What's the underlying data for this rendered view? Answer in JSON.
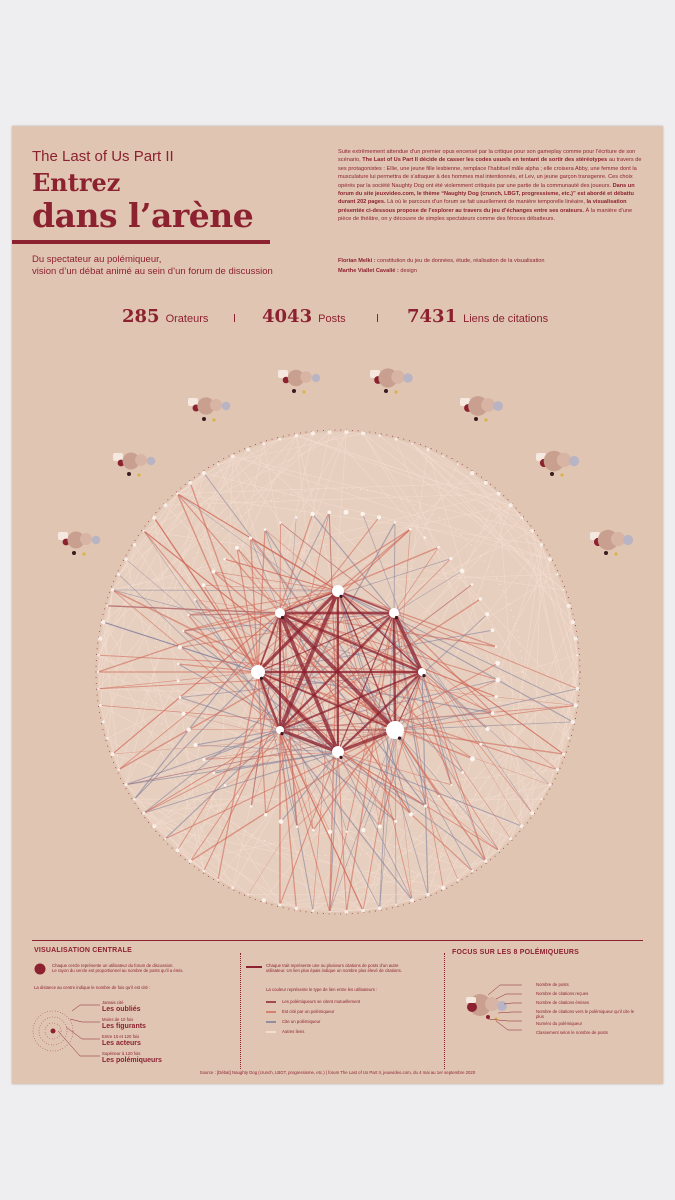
{
  "header": {
    "kicker": "The Last of Us Part II",
    "title_line1": "Entrez",
    "title_line2": "dans l’arène",
    "subtitle_line1": "Du spectateur au polémiqueur,",
    "subtitle_line2": "vision d’un débat animé au sein d’un forum de discussion"
  },
  "intro": {
    "p1": "Suite extrêmement attendue d’un premier opus encensé par la critique pour son gameplay comme pour l’écriture de son scénario,",
    "p1_bold": "The Last of Us Part II décide de casser les codes usuels en tentant de sortir des stéréotypes",
    "p2": "au travers de ses protagonistes : Ellie, une jeune fille lesbienne, remplace l’habituel mâle alpha ; elle croisera Abby, une femme dont la musculature lui permettra de s’attaquer à des hommes mal intentionnés, et Lev, un jeune garçon transgenre. Ces choix opérés par la société Naughty Dog ont été violemment critiqués par une partie de la communauté des joueurs.",
    "p3_bold": "Dans un forum du site jeuxvideo.com, le thème “Naughty Dog (crunch, LBGT, progressisme, etc.)” est abordé et débattu durant 202 pages.",
    "p4": "Là où le parcours d’un forum se fait usuellement de manière temporelle linéaire,",
    "p4_bold": "la visualisation présentée ci-dessous propose de l’explorer au travers du jeu d’échanges entre ses orateurs.",
    "p5": "À la manière d’une pièce de théâtre, on y découvre de simples spectateurs comme des féroces débatteurs."
  },
  "credits": {
    "line1_name": "Florian Melki :",
    "line1_role": "constitution du jeu de données, étude, réalisation de la visualisation",
    "line2_name": "Marthe Viallet Cavalié :",
    "line2_role": "design"
  },
  "stats": [
    {
      "value": "285",
      "label": "Orateurs"
    },
    {
      "value": "4043",
      "label": "Posts"
    },
    {
      "value": "7431",
      "label": "Liens de citations"
    }
  ],
  "colors": {
    "background": "#e0c5b2",
    "accent": "#8c2130",
    "link_mutual": "#8c2130",
    "link_cited_by": "#d06a5a",
    "link_cites": "#7a7a9a",
    "link_other": "#f2dccf"
  },
  "legend": {
    "central_heading": "VISUALISATION CENTRALE",
    "circle_desc_line1": "Chaque cercle représente un utilisateur du forum de discussion.",
    "circle_desc_line2": "Le rayon du cercle est proportionnel au nombre de posts qu’il a émis.",
    "distance_desc": "La distance au centre indique le nombre de fois qu’il est cité :",
    "tiers": [
      {
        "range": "Jamais cité",
        "name": "Les oubliés"
      },
      {
        "range": "Moins de 10 fois",
        "name": "Les figurants"
      },
      {
        "range": "Entre 10 et 120 fois",
        "name": "Les acteurs"
      },
      {
        "range": "Supérieur à 120 fois",
        "name": "Les polémiqueurs"
      }
    ],
    "line_desc_line1": "Chaque trait représente une ou plusieurs citations de posts d’un autre",
    "line_desc_line2": "utilisateur. Un lien plus épais indique un nombre plus élevé de citations.",
    "color_desc": "La couleur représente le type de lien entre les utilisateurs :",
    "link_types": [
      "Les polémiqueurs se citent mutuellement",
      "Est cité par un polémiqueur",
      "Cite un polémiqueur",
      "Autres liens"
    ],
    "focus_heading": "FOCUS SUR LES 8 POLÉMIQUEURS",
    "focus_items": [
      "Nombre de posts",
      "Nombre de citations reçues",
      "Nombre de citations émises",
      "Nombre de citations vers le polémiqueur qu’il cite le plus",
      "Numéro du polémiqueur",
      "Classement selon le nombre de posts"
    ]
  },
  "source": "Source : [Débat] Naughty Dog (crunch, LBGT, progressisme, etc.) | forum The Last of Us Part II, jeuxvideo.com, du 4 mai au 1er septembre 2020"
}
